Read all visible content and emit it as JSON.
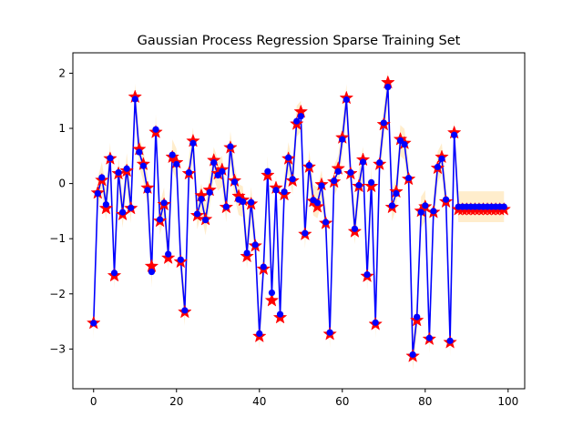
{
  "chart_data": {
    "type": "line",
    "title": "Gaussian Process Regression Sparse Training Set",
    "xlabel": "",
    "ylabel": "",
    "xlim": [
      -5,
      104
    ],
    "ylim": [
      -3.72,
      2.37
    ],
    "x_ticks": [
      0,
      20,
      40,
      60,
      80,
      100
    ],
    "y_ticks": [
      -3,
      -2,
      -1,
      0,
      1,
      2
    ],
    "grid": false,
    "legend": "none",
    "colors": {
      "prediction": "#0000ff",
      "training_points": "#ff0000",
      "confidence_band": "#ffa500"
    },
    "x": [
      0,
      1,
      2,
      3,
      4,
      5,
      6,
      7,
      8,
      9,
      10,
      11,
      12,
      13,
      14,
      15,
      16,
      17,
      18,
      19,
      20,
      21,
      22,
      23,
      24,
      25,
      26,
      27,
      28,
      29,
      30,
      31,
      32,
      33,
      34,
      35,
      36,
      37,
      38,
      39,
      40,
      41,
      42,
      43,
      44,
      45,
      46,
      47,
      48,
      49,
      50,
      51,
      52,
      53,
      54,
      55,
      56,
      57,
      58,
      59,
      60,
      61,
      62,
      63,
      64,
      65,
      66,
      67,
      68,
      69,
      70,
      71,
      72,
      73,
      74,
      75,
      76,
      77,
      78,
      79,
      80,
      81,
      82,
      83,
      84,
      85,
      86,
      87,
      88,
      89,
      90,
      91,
      92,
      93,
      94,
      95,
      96,
      97,
      98,
      99
    ],
    "series": [
      {
        "role": "training_points",
        "values": [
          -2.53,
          -0.17,
          0.06,
          -0.45,
          0.45,
          -1.67,
          0.18,
          -0.56,
          0.23,
          -0.45,
          1.57,
          0.62,
          0.35,
          -0.08,
          -1.5,
          0.93,
          -0.68,
          -0.38,
          -1.35,
          0.48,
          0.38,
          -1.42,
          -2.33,
          0.18,
          0.77,
          -0.58,
          -0.22,
          -0.65,
          -0.12,
          0.42,
          0.18,
          0.25,
          -0.43,
          0.65,
          0.05,
          -0.23,
          -0.3,
          -1.32,
          -0.37,
          -1.13,
          -2.77,
          -1.55,
          0.15,
          -2.12,
          -0.08,
          -2.43,
          -0.2,
          0.45,
          0.05,
          1.08,
          1.3,
          -0.92,
          0.3,
          -0.32,
          -0.42,
          -0.02,
          -0.72,
          -2.73,
          0.03,
          0.27,
          0.83,
          1.55,
          0.18,
          -0.87,
          -0.05,
          0.43,
          -1.68,
          -0.05,
          -2.55,
          0.35,
          1.07,
          1.83,
          -0.43,
          -0.15,
          0.8,
          0.73,
          0.08,
          -3.13,
          -2.48,
          -0.5,
          -0.42,
          -2.82,
          -0.52,
          0.28,
          0.48,
          -0.33,
          -2.88,
          0.92,
          -0.47,
          -0.47,
          -0.47,
          -0.47,
          -0.47,
          -0.47,
          -0.47,
          -0.47,
          -0.47,
          -0.47,
          -0.47,
          -0.47
        ]
      },
      {
        "role": "prediction",
        "values": [
          -2.53,
          -0.18,
          0.11,
          -0.38,
          0.46,
          -1.62,
          0.2,
          -0.52,
          0.27,
          -0.44,
          1.53,
          0.57,
          0.32,
          -0.12,
          -1.6,
          0.98,
          -0.65,
          -0.35,
          -1.28,
          0.52,
          0.35,
          -1.38,
          -2.3,
          0.2,
          0.73,
          -0.55,
          -0.28,
          -0.66,
          -0.16,
          0.38,
          0.15,
          0.22,
          -0.42,
          0.67,
          0.03,
          -0.29,
          -0.33,
          -1.26,
          -0.34,
          -1.11,
          -2.72,
          -1.51,
          0.22,
          -1.98,
          -0.12,
          -2.37,
          -0.15,
          0.47,
          0.08,
          1.13,
          1.22,
          -0.9,
          0.33,
          -0.3,
          -0.35,
          -0.04,
          -0.7,
          -2.7,
          0.05,
          0.22,
          0.8,
          1.52,
          0.2,
          -0.82,
          -0.03,
          0.39,
          -1.65,
          0.02,
          -2.52,
          0.38,
          1.1,
          1.75,
          -0.4,
          -0.18,
          0.78,
          0.71,
          0.1,
          -3.1,
          -2.42,
          -0.52,
          -0.4,
          -2.8,
          -0.5,
          0.3,
          0.45,
          -0.29,
          -2.85,
          0.88,
          -0.42,
          -0.42,
          -0.42,
          -0.42,
          -0.42,
          -0.42,
          -0.42,
          -0.42,
          -0.42,
          -0.42,
          -0.42,
          -0.42
        ]
      }
    ]
  }
}
